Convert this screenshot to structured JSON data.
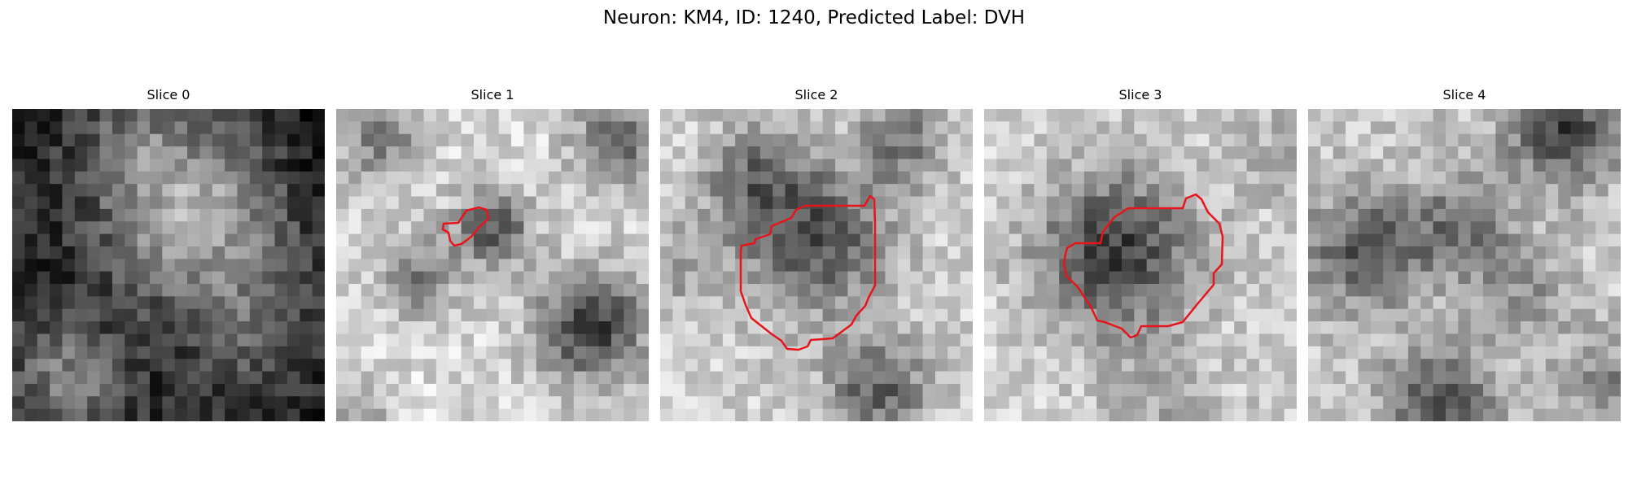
{
  "figure": {
    "title": "Neuron: KM4, ID: 1240, Predicted Label: DVH"
  },
  "panels": [
    {
      "title": "Slice 0",
      "roi": false
    },
    {
      "title": "Slice 1",
      "roi": true
    },
    {
      "title": "Slice 2",
      "roi": true
    },
    {
      "title": "Slice 3",
      "roi": true
    },
    {
      "title": "Slice 4",
      "roi": false
    }
  ],
  "colors": {
    "roi_outline": "#e8141b",
    "background": "#ffffff",
    "colormap": "gray"
  }
}
